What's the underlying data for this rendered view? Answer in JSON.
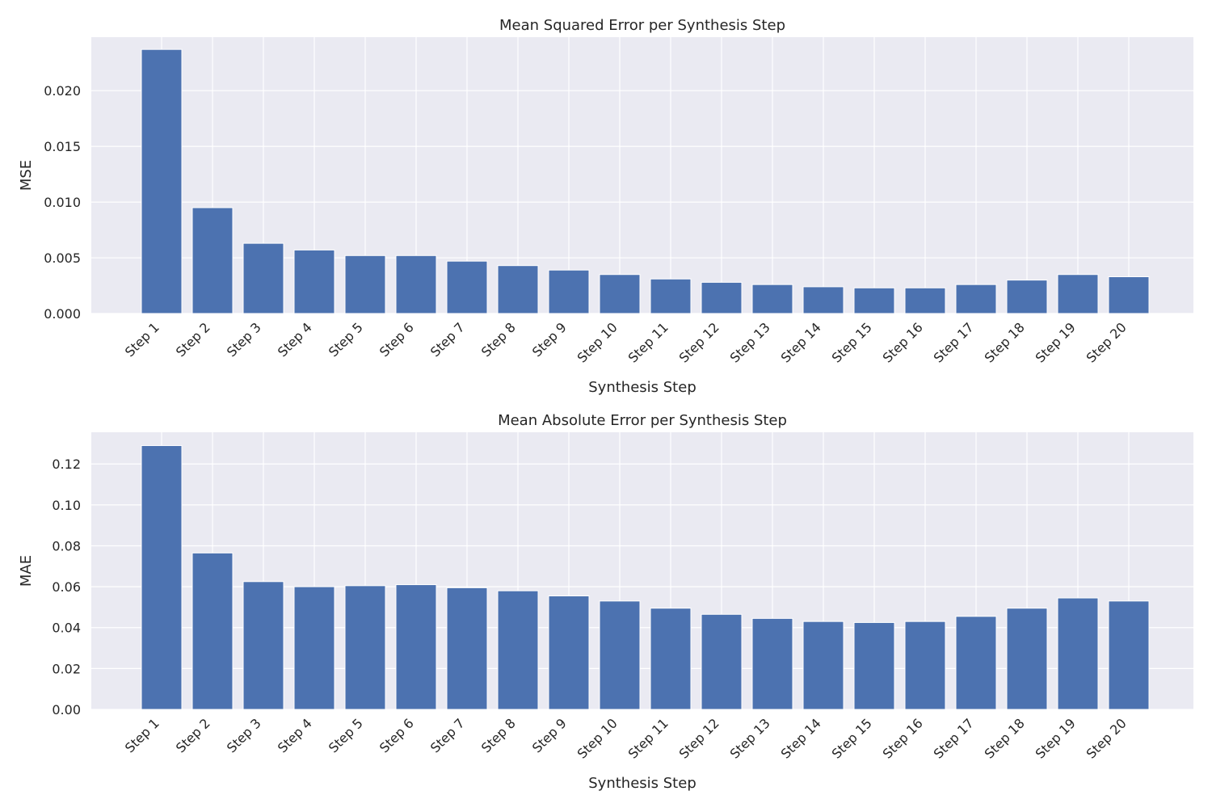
{
  "chart_data": [
    {
      "type": "bar",
      "title": "Mean Squared Error per Synthesis Step",
      "xlabel": "Synthesis Step",
      "ylabel": "MSE",
      "ylim": [
        0,
        0.0248
      ],
      "yticks": [
        "0.000",
        "0.005",
        "0.010",
        "0.015",
        "0.020"
      ],
      "ytick_values": [
        0,
        0.005,
        0.01,
        0.015,
        0.02
      ],
      "grid": true,
      "categories": [
        "Step 1",
        "Step 2",
        "Step 3",
        "Step 4",
        "Step 5",
        "Step 6",
        "Step 7",
        "Step 8",
        "Step 9",
        "Step 10",
        "Step 11",
        "Step 12",
        "Step 13",
        "Step 14",
        "Step 15",
        "Step 16",
        "Step 17",
        "Step 18",
        "Step 19",
        "Step 20"
      ],
      "values": [
        0.0237,
        0.0095,
        0.0063,
        0.0057,
        0.0052,
        0.0052,
        0.0047,
        0.0043,
        0.0039,
        0.0035,
        0.0031,
        0.0028,
        0.0026,
        0.0024,
        0.0023,
        0.0023,
        0.0026,
        0.003,
        0.0035,
        0.0033
      ],
      "color": "#4c72b0"
    },
    {
      "type": "bar",
      "title": "Mean Absolute Error per Synthesis Step",
      "xlabel": "Synthesis Step",
      "ylabel": "MAE",
      "ylim": [
        0,
        0.1355
      ],
      "yticks": [
        "0.00",
        "0.02",
        "0.04",
        "0.06",
        "0.08",
        "0.10",
        "0.12"
      ],
      "ytick_values": [
        0,
        0.02,
        0.04,
        0.06,
        0.08,
        0.1,
        0.12
      ],
      "grid": true,
      "categories": [
        "Step 1",
        "Step 2",
        "Step 3",
        "Step 4",
        "Step 5",
        "Step 6",
        "Step 7",
        "Step 8",
        "Step 9",
        "Step 10",
        "Step 11",
        "Step 12",
        "Step 13",
        "Step 14",
        "Step 15",
        "Step 16",
        "Step 17",
        "Step 18",
        "Step 19",
        "Step 20"
      ],
      "values": [
        0.129,
        0.0765,
        0.0625,
        0.06,
        0.0605,
        0.061,
        0.0595,
        0.058,
        0.0555,
        0.053,
        0.0495,
        0.0465,
        0.0445,
        0.043,
        0.0425,
        0.043,
        0.0455,
        0.0495,
        0.0545,
        0.053
      ],
      "color": "#4c72b0"
    }
  ]
}
